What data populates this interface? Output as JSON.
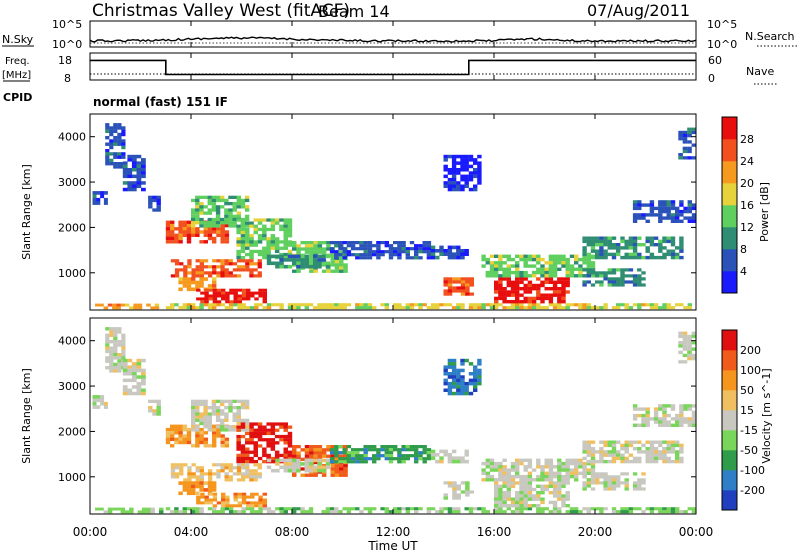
{
  "header": {
    "title": "Christmas Valley West (fitACF)",
    "beam": "Beam 14",
    "date": "07/Aug/2011"
  },
  "chart_data": {
    "type": "heatmap",
    "xlabel": "Time UT",
    "x_ticks": [
      "00:00",
      "04:00",
      "08:00",
      "12:00",
      "16:00",
      "20:00",
      "00:00"
    ],
    "xlim_hours": [
      0,
      24
    ],
    "noise_panel": {
      "left_label": "N.Sky",
      "right_label": "N.Search",
      "left_ticks": [
        "10^5",
        "10^0"
      ],
      "right_ticks": [
        "10^5",
        "10^0"
      ]
    },
    "freq_panel": {
      "left_label_top": "Freq.",
      "left_label_unit": "[MHz]",
      "right_label": "Nave",
      "left_ticks": [
        "18",
        "8"
      ],
      "right_ticks": [
        "60",
        "0"
      ],
      "freq_steps": [
        {
          "start": 0,
          "end": 3.0,
          "mhz": 16
        },
        {
          "start": 3.0,
          "end": 15.0,
          "mhz": 9.6
        },
        {
          "start": 15.0,
          "end": 24,
          "mhz": 16
        }
      ]
    },
    "cpid": {
      "label": "CPID",
      "value": "normal (fast) 151 IF"
    },
    "power_panel": {
      "ylabel": "Slant Range [km]",
      "y_ticks": [
        1000,
        2000,
        3000,
        4000
      ],
      "ylim": [
        180,
        4500
      ],
      "colorbar_label": "Power [dB]",
      "colorbar_ticks": [
        "28",
        "24",
        "20",
        "16",
        "12",
        "8",
        "4"
      ],
      "colors": [
        "#1a1aff",
        "#2a52b8",
        "#2f8d73",
        "#5fcf5f",
        "#e6d23a",
        "#f59a1e",
        "#f2501e",
        "#e80e0e"
      ]
    },
    "velocity_panel": {
      "ylabel": "Slant Range [km]",
      "y_ticks": [
        1000,
        2000,
        3000,
        4000
      ],
      "ylim": [
        180,
        4500
      ],
      "colorbar_label": "Velocity [m s^-1]",
      "colorbar_ticks": [
        "200",
        "100",
        "50",
        "15",
        "-15",
        "-50",
        "-100",
        "-200"
      ],
      "colors": [
        "#1f3fbf",
        "#2f7fc8",
        "#2e9c4a",
        "#7ad65a",
        "#c8c8c0",
        "#f0c060",
        "#f5951e",
        "#f05a1a",
        "#e01010"
      ]
    },
    "regions": [
      {
        "t0": 0.2,
        "t1": 2.9,
        "r0": 200,
        "r1": 320,
        "power": 5,
        "velocity": 3
      },
      {
        "t0": 3.0,
        "t1": 24,
        "r0": 200,
        "r1": 330,
        "power": 4,
        "velocity": 3
      },
      {
        "t0": 0.6,
        "t1": 1.4,
        "r0": 3300,
        "r1": 4300,
        "power": 1,
        "velocity": 4
      },
      {
        "t0": 1.3,
        "t1": 2.2,
        "r0": 2800,
        "r1": 3600,
        "power": 1,
        "velocity": 4
      },
      {
        "t0": 0.1,
        "t1": 0.7,
        "r0": 2500,
        "r1": 2800,
        "power": 1,
        "velocity": 4
      },
      {
        "t0": 2.3,
        "t1": 2.8,
        "r0": 2350,
        "r1": 2700,
        "power": 1,
        "velocity": 4
      },
      {
        "t0": 3.0,
        "t1": 5.5,
        "r0": 1650,
        "r1": 2150,
        "power": 6,
        "velocity": 6
      },
      {
        "t0": 4.0,
        "t1": 6.3,
        "r0": 2000,
        "r1": 2700,
        "power": 3,
        "velocity": 4
      },
      {
        "t0": 5.8,
        "t1": 8.0,
        "r0": 1300,
        "r1": 2200,
        "power": 3,
        "velocity": 8
      },
      {
        "t0": 8.0,
        "t1": 10.2,
        "r0": 1000,
        "r1": 1700,
        "power": 3,
        "velocity": 7
      },
      {
        "t0": 3.2,
        "t1": 6.8,
        "r0": 900,
        "r1": 1300,
        "power": 6,
        "velocity": 5
      },
      {
        "t0": 3.5,
        "t1": 5.0,
        "r0": 600,
        "r1": 900,
        "power": 5,
        "velocity": 6
      },
      {
        "t0": 4.2,
        "t1": 7.0,
        "r0": 330,
        "r1": 650,
        "power": 7,
        "velocity": 6
      },
      {
        "t0": 7.0,
        "t1": 9.5,
        "r0": 1100,
        "r1": 1400,
        "power": 2,
        "velocity": 4
      },
      {
        "t0": 9.5,
        "t1": 13.5,
        "r0": 1300,
        "r1": 1700,
        "power": 1,
        "velocity": 2
      },
      {
        "t0": 13.5,
        "t1": 15.0,
        "r0": 1300,
        "r1": 1600,
        "power": 1,
        "velocity": 4
      },
      {
        "t0": 14.0,
        "t1": 15.5,
        "r0": 2800,
        "r1": 3600,
        "power": 0,
        "velocity": 1
      },
      {
        "t0": 14.0,
        "t1": 15.2,
        "r0": 500,
        "r1": 900,
        "power": 6,
        "velocity": 4
      },
      {
        "t0": 16.0,
        "t1": 19.0,
        "r0": 330,
        "r1": 900,
        "power": 7,
        "velocity": 4
      },
      {
        "t0": 15.5,
        "t1": 20.0,
        "r0": 900,
        "r1": 1400,
        "power": 3,
        "velocity": 4
      },
      {
        "t0": 19.5,
        "t1": 23.5,
        "r0": 1300,
        "r1": 1800,
        "power": 2,
        "velocity": 4
      },
      {
        "t0": 21.5,
        "t1": 24,
        "r0": 2100,
        "r1": 2600,
        "power": 1,
        "velocity": 4
      },
      {
        "t0": 19.5,
        "t1": 22.0,
        "r0": 700,
        "r1": 1100,
        "power": 2,
        "velocity": 4
      },
      {
        "t0": 23.3,
        "t1": 24,
        "r0": 3500,
        "r1": 4200,
        "power": 1,
        "velocity": 4
      }
    ]
  }
}
